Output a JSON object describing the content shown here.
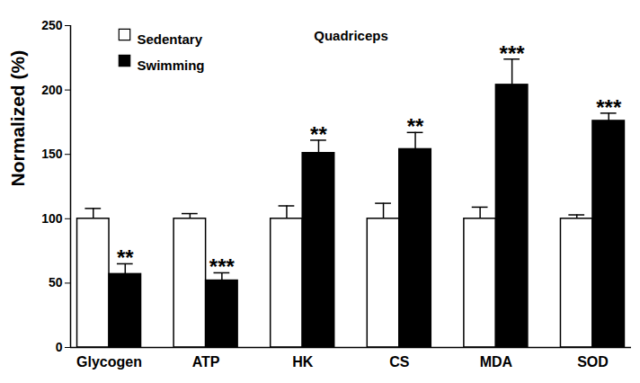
{
  "chart_data": {
    "type": "bar",
    "title": "Quadriceps",
    "y_label": "Normalized (%)",
    "categories": [
      "Glycogen",
      "ATP",
      "HK",
      "CS",
      "MDA",
      "SOD"
    ],
    "series": [
      {
        "name": "Sedentary",
        "color": "#ffffff",
        "values": [
          100,
          100,
          100,
          100,
          100,
          100
        ],
        "errors": [
          8,
          4,
          10,
          12,
          9,
          3
        ]
      },
      {
        "name": "Swimming",
        "color": "#000000",
        "values": [
          57,
          52,
          151,
          154,
          204,
          176
        ],
        "errors": [
          8,
          6,
          10,
          13,
          20,
          6
        ],
        "significance": [
          "**",
          "***",
          "**",
          "**",
          "***",
          "***"
        ]
      }
    ],
    "ylim": [
      0,
      250
    ],
    "yticks": [
      0,
      50,
      100,
      150,
      200,
      250
    ],
    "legend": "upper left",
    "grid": false
  }
}
